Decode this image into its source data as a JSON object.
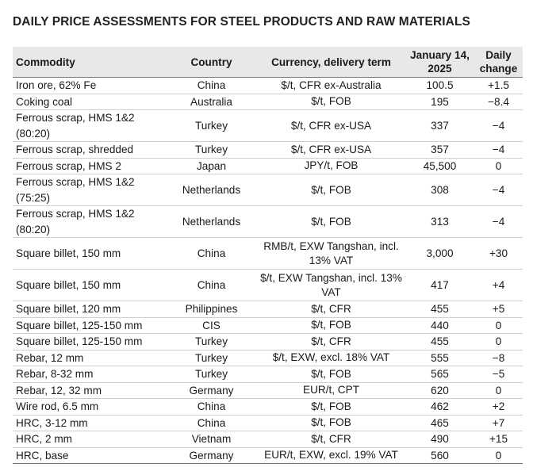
{
  "title": "DAILY PRICE ASSESSMENTS FOR STEEL PRODUCTS AND RAW MATERIALS",
  "headers": {
    "commodity": "Commodity",
    "country": "Country",
    "term": "Currency, delivery term",
    "date_line1": "January 14,",
    "date_line2": "2025",
    "change_line1": "Daily",
    "change_line2": "change"
  },
  "rows": [
    {
      "commodity": "Iron ore, 62% Fe",
      "country": "China",
      "term": "$/t, CFR ex-Australia",
      "value": "100.5",
      "change": "+1.5",
      "tall": false
    },
    {
      "commodity": "Coking coal",
      "country": "Australia",
      "term": "$/t, FOB",
      "value": "195",
      "change": "−8.4",
      "tall": false
    },
    {
      "commodity": "Ferrous scrap, HMS 1&2 (80:20)",
      "country": "Turkey",
      "term": "$/t, CFR ex-USA",
      "value": "337",
      "change": "−4",
      "tall": true
    },
    {
      "commodity": "Ferrous scrap, shredded",
      "country": "Turkey",
      "term": "$/t, CFR ex-USA",
      "value": "357",
      "change": "−4",
      "tall": false
    },
    {
      "commodity": "Ferrous scrap, HMS 2",
      "country": "Japan",
      "term": "JPY/t, FOB",
      "value": "45,500",
      "change": "0",
      "tall": false
    },
    {
      "commodity": "Ferrous scrap, HMS 1&2 (75:25)",
      "country": "Netherlands",
      "term": "$/t, FOB",
      "value": "308",
      "change": "−4",
      "tall": true
    },
    {
      "commodity": "Ferrous scrap, HMS 1&2 (80:20)",
      "country": "Netherlands",
      "term": "$/t, FOB",
      "value": "313",
      "change": "−4",
      "tall": true
    },
    {
      "commodity": "Square billet, 150 mm",
      "country": "China",
      "term": "RMB/t, EXW Tangshan, incl. 13% VAT",
      "value": "3,000",
      "change": "+30",
      "tall": true
    },
    {
      "commodity": "Square billet, 150 mm",
      "country": "China",
      "term": "$/t, EXW Tangshan, incl. 13% VAT",
      "value": "417",
      "change": "+4",
      "tall": true
    },
    {
      "commodity": "Square billet, 120 mm",
      "country": "Philippines",
      "term": "$/t, CFR",
      "value": "455",
      "change": "+5",
      "tall": false
    },
    {
      "commodity": "Square billet, 125-150 mm",
      "country": "CIS",
      "term": "$/t, FOB",
      "value": "440",
      "change": "0",
      "tall": false
    },
    {
      "commodity": "Square billet, 125-150 mm",
      "country": "Turkey",
      "term": "$/t, CFR",
      "value": "455",
      "change": "0",
      "tall": false
    },
    {
      "commodity": "Rebar, 12 mm",
      "country": "Turkey",
      "term": "$/t, EXW, excl. 18% VAT",
      "value": "555",
      "change": "−8",
      "tall": false
    },
    {
      "commodity": "Rebar, 8-32 mm",
      "country": "Turkey",
      "term": "$/t, FOB",
      "value": "565",
      "change": "−5",
      "tall": false
    },
    {
      "commodity": "Rebar, 12, 32 mm",
      "country": "Germany",
      "term": "EUR/t, CPT",
      "value": "620",
      "change": "0",
      "tall": false
    },
    {
      "commodity": "Wire rod, 6.5 mm",
      "country": "China",
      "term": "$/t, FOB",
      "value": "462",
      "change": "+2",
      "tall": false
    },
    {
      "commodity": "HRC, 3-12 mm",
      "country": "China",
      "term": "$/t, FOB",
      "value": "465",
      "change": "+7",
      "tall": false
    },
    {
      "commodity": "HRC, 2 mm",
      "country": "Vietnam",
      "term": "$/t, CFR",
      "value": "490",
      "change": "+15",
      "tall": false
    },
    {
      "commodity": "HRC, base",
      "country": "Germany",
      "term": "EUR/t, EXW, excl. 19% VAT",
      "value": "560",
      "change": "0",
      "tall": false
    }
  ]
}
